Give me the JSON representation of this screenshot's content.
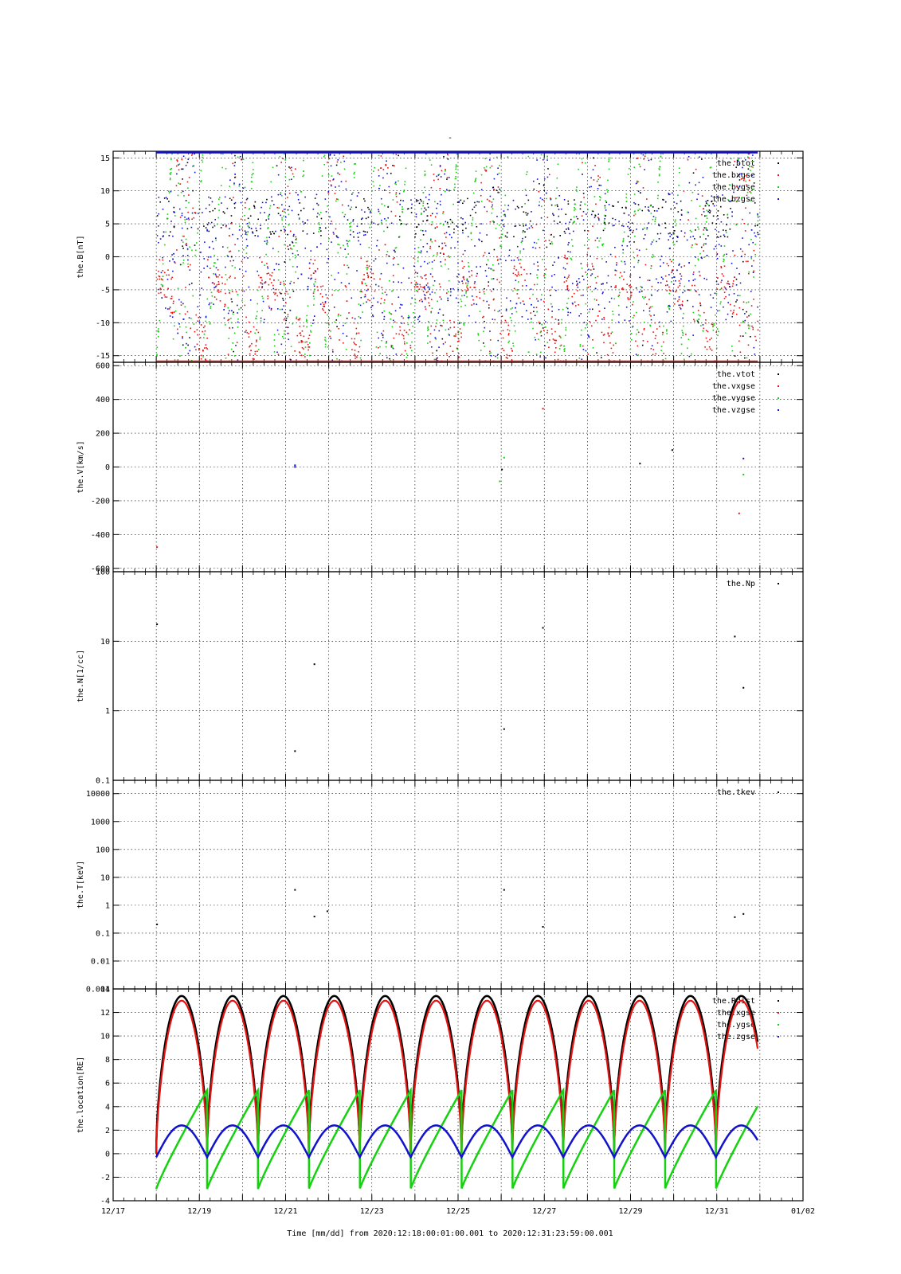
{
  "page_title": "-",
  "x_axis": {
    "label": "Time [mm/dd]  from 2020:12:18:00:01:00.001  to  2020:12:31:23:59:00.001",
    "range_days": [
      0,
      16
    ],
    "date_origin": "12/17",
    "tick_labels": [
      "12/17",
      "12/19",
      "12/21",
      "12/23",
      "12/25",
      "12/27",
      "12/29",
      "12/31",
      "01/02"
    ]
  },
  "colors": {
    "black": "#000000",
    "red": "#e8120f",
    "green": "#15d10f",
    "blue": "#1212cc"
  },
  "chart_data": [
    {
      "type": "scatter",
      "ylabel": "the.B[nT]",
      "ylim": [
        -16,
        16
      ],
      "yticks": [
        15,
        10,
        5,
        0,
        -5,
        -10,
        -15
      ],
      "ytick_labels": [
        "15",
        "10",
        "5",
        "0",
        "-5",
        "-10",
        "-15"
      ],
      "legend": [
        "the.btot",
        "the.bxgse",
        "the.bygse",
        "the.bzgse"
      ],
      "legend_position": "top-right",
      "grid": true,
      "series": [
        {
          "name": "the.btot",
          "color": "#000000"
        },
        {
          "name": "the.bxgse",
          "color": "#e8120f"
        },
        {
          "name": "the.bygse",
          "color": "#15d10f"
        },
        {
          "name": "the.bzgse",
          "color": "#1212cc"
        }
      ],
      "note_values": "dense scattered samples between 12/18 and 12/31, mostly between -16 and 16 nT"
    },
    {
      "type": "scatter",
      "ylabel": "the.V[km/s]",
      "ylim": [
        -620,
        620
      ],
      "yticks": [
        600,
        400,
        200,
        0,
        -200,
        -400,
        -600
      ],
      "ytick_labels": [
        "600",
        "400",
        "200",
        "0",
        "-200",
        "-400",
        "-600"
      ],
      "legend": [
        "the.vtot",
        "the.vxgse",
        "the.vygse",
        "the.vzgse"
      ],
      "legend_position": "top-right",
      "grid": true,
      "series": [
        {
          "name": "the.vtot",
          "color": "#000000",
          "x": [
            9.0,
            12.95,
            12.2
          ],
          "y": [
            -10,
            105,
            25
          ]
        },
        {
          "name": "the.vxgse",
          "color": "#e8120f",
          "x": [
            1.0,
            14.5,
            9.95
          ],
          "y": [
            -470,
            -270,
            350
          ]
        },
        {
          "name": "the.vygse",
          "color": "#15d10f",
          "x": [
            14.6,
            9.05,
            8.95
          ],
          "y": [
            -40,
            60,
            -80
          ]
        },
        {
          "name": "the.vzgse",
          "color": "#1212cc",
          "x": [
            4.2,
            14.6,
            4.2
          ],
          "y": [
            5,
            55,
            15
          ]
        }
      ]
    },
    {
      "type": "scatter",
      "ylabel": "the.N[1/cc]",
      "yscale": "log",
      "ylim": [
        0.1,
        100
      ],
      "yticks": [
        100,
        10,
        1,
        0.1
      ],
      "ytick_labels": [
        "100",
        "10",
        "1",
        "0.1"
      ],
      "legend": [
        "the.Np"
      ],
      "legend_position": "top-right",
      "grid": true,
      "series": [
        {
          "name": "the.Np",
          "color": "#000000",
          "x": [
            1.0,
            4.2,
            4.65,
            9.05,
            9.95,
            14.4,
            14.6
          ],
          "y": [
            18,
            0.27,
            4.8,
            0.56,
            16,
            12,
            2.2
          ]
        }
      ]
    },
    {
      "type": "scatter",
      "ylabel": "the.T[keV]",
      "yscale": "log",
      "ylim": [
        0.001,
        30000
      ],
      "yticks": [
        10000,
        1000,
        100,
        10,
        1,
        0.1,
        0.01,
        0.001
      ],
      "ytick_labels": [
        "10000",
        "1000",
        "100",
        "10",
        "1",
        "0.1",
        "0.01",
        "0.001"
      ],
      "legend": [
        "the.tkev"
      ],
      "legend_position": "top-right",
      "grid": true,
      "series": [
        {
          "name": "the.tkev",
          "color": "#000000",
          "x": [
            1.0,
            4.2,
            4.65,
            4.95,
            9.05,
            9.95,
            14.4,
            14.6
          ],
          "y": [
            0.22,
            3.8,
            0.42,
            0.65,
            3.8,
            0.18,
            0.4,
            0.52
          ]
        }
      ]
    },
    {
      "type": "line",
      "ylabel": "the.location[RE]",
      "ylim": [
        -4,
        14
      ],
      "yticks": [
        14,
        12,
        10,
        8,
        6,
        4,
        2,
        0,
        -2,
        -4
      ],
      "ytick_labels": [
        "14",
        "12",
        "10",
        "8",
        "6",
        "4",
        "2",
        "0",
        "-2",
        "-4"
      ],
      "legend": [
        "the.Rdist",
        "the.xgse",
        "the.ygse",
        "the.zgse"
      ],
      "legend_position": "top-right",
      "grid": true,
      "orbit_start": 1.0,
      "orbit_end": 14.95,
      "orbit_period_days": 1.18,
      "series": [
        {
          "name": "the.Rdist",
          "color": "#000000",
          "peak": 13.4
        },
        {
          "name": "the.xgse",
          "color": "#e8120f",
          "peak": 13.0
        },
        {
          "name": "the.ygse",
          "color": "#15d10f",
          "min": -3.0,
          "max": 5.4
        },
        {
          "name": "the.zgse",
          "color": "#1212cc",
          "min": -0.3,
          "max": 2.4
        }
      ]
    }
  ]
}
